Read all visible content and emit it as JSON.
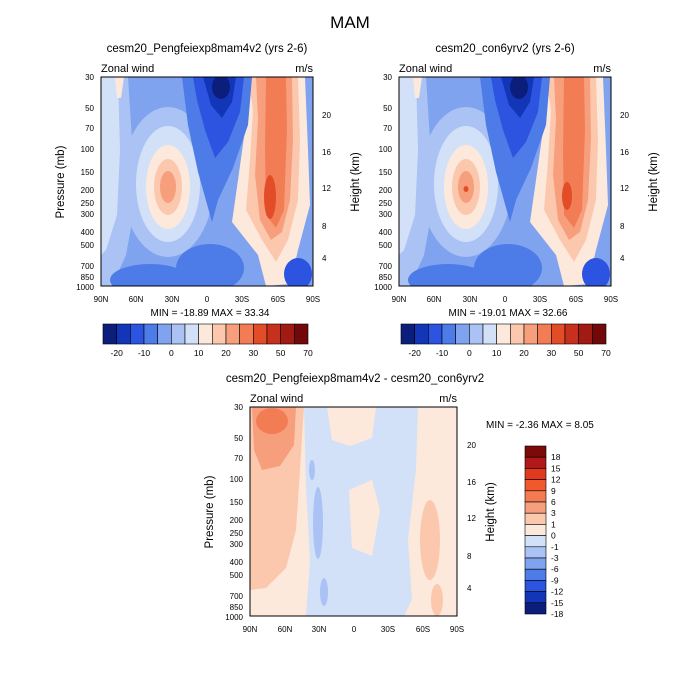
{
  "figure_title": "MAM",
  "chart_data": [
    {
      "type": "heatmap",
      "title": "cesm20_Pengfeiexp8mam4v2 (yrs 2-6)",
      "left_string": "Zonal wind",
      "right_string": "m/s",
      "ylabel": "Pressure (mb)",
      "ylabel_right": "Height (km)",
      "x_ticks": [
        "90N",
        "60N",
        "30N",
        "0",
        "30S",
        "60S",
        "90S"
      ],
      "y_ticks": [
        "30",
        "50",
        "70",
        "100",
        "150",
        "200",
        "250",
        "300",
        "400",
        "500",
        "700",
        "850",
        "1000"
      ],
      "y_ticks_right": [
        "20",
        "16",
        "12",
        "8",
        "4"
      ],
      "stats": "MIN = -18.89  MAX =  33.34",
      "levels": [
        -20,
        -15,
        -10,
        -5,
        0,
        5,
        10,
        15,
        20,
        25,
        30,
        40,
        50,
        60,
        70
      ]
    },
    {
      "type": "heatmap",
      "title": "cesm20_con6yrv2 (yrs 2-6)",
      "left_string": "Zonal wind",
      "right_string": "m/s",
      "ylabel": "Pressure (mb)",
      "ylabel_right": "Height (km)",
      "x_ticks": [
        "90N",
        "60N",
        "30N",
        "0",
        "30S",
        "60S",
        "90S"
      ],
      "y_ticks": [
        "30",
        "50",
        "70",
        "100",
        "150",
        "200",
        "250",
        "300",
        "400",
        "500",
        "700",
        "850",
        "1000"
      ],
      "y_ticks_right": [
        "20",
        "16",
        "12",
        "8",
        "4"
      ],
      "stats": "MIN = -19.01  MAX =  32.66",
      "levels": [
        -20,
        -15,
        -10,
        -5,
        0,
        5,
        10,
        15,
        20,
        25,
        30,
        40,
        50,
        60,
        70
      ]
    },
    {
      "type": "heatmap",
      "title": "cesm20_Pengfeiexp8mam4v2 - cesm20_con6yrv2",
      "left_string": "Zonal wind",
      "right_string": "m/s",
      "ylabel": "Pressure (mb)",
      "ylabel_right": "Height (km)",
      "x_ticks": [
        "90N",
        "60N",
        "30N",
        "0",
        "30S",
        "60S",
        "90S"
      ],
      "y_ticks": [
        "30",
        "50",
        "70",
        "100",
        "150",
        "200",
        "250",
        "300",
        "400",
        "500",
        "700",
        "850",
        "1000"
      ],
      "y_ticks_right": [
        "20",
        "16",
        "12",
        "8",
        "4"
      ],
      "stats": "MIN =  -2.36  MAX =   8.05",
      "levels": [
        -18,
        -15,
        -12,
        -9,
        -6,
        -3,
        -1,
        0,
        1,
        3,
        6,
        9,
        12,
        15,
        18
      ]
    }
  ],
  "colorbar_main": {
    "labels": [
      "-20",
      "-10",
      "0",
      "10",
      "20",
      "30",
      "50",
      "70"
    ],
    "colors": [
      "#0b1e7c",
      "#1336b8",
      "#2c54e0",
      "#4d7be8",
      "#7fa3ee",
      "#abc3f4",
      "#d3e1f8",
      "#fde9dc",
      "#fbc8ae",
      "#f79f7c",
      "#f27d55",
      "#e24d28",
      "#c7301c",
      "#a11b14",
      "#73080b"
    ]
  },
  "colorbar_diff": {
    "labels": [
      "18",
      "15",
      "12",
      "9",
      "6",
      "3",
      "1",
      "0",
      "-1",
      "-3",
      "-6",
      "-9",
      "-12",
      "-15",
      "-18"
    ],
    "colors": [
      "#7b0a0b",
      "#b0181a",
      "#e0391d",
      "#f0592e",
      "#f47b51",
      "#f69f7e",
      "#fbc8ae",
      "#fde9dc",
      "#d3e1f8",
      "#abc3f4",
      "#7fa3ee",
      "#4d7be8",
      "#2c54e0",
      "#1336b8",
      "#0b1e7c"
    ]
  },
  "palette": {
    "deep_blue": "#1f3fb8",
    "mid_blue": "#4d7be8",
    "light_blue": "#7fa3ee",
    "pale_blue": "#abc3f4",
    "very_pale_blue": "#d3e1f8",
    "cream": "#fde9dc",
    "peach": "#fbc8ae",
    "salmon": "#f79f7c",
    "orange": "#f27d55",
    "red": "#e24d28"
  }
}
